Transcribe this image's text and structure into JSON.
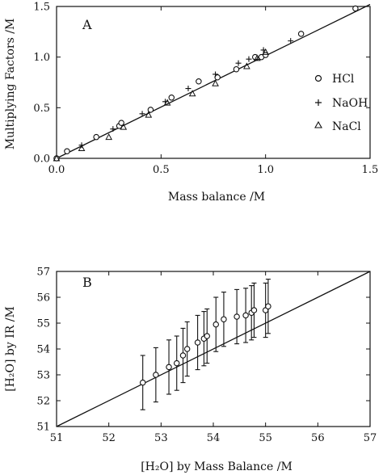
{
  "chart_data": [
    {
      "type": "scatter",
      "panel_label": "A",
      "xlabel": "Mass balance  /M",
      "ylabel": "Multiplying Factors  /M",
      "xlim": [
        0,
        1.5
      ],
      "ylim": [
        0,
        1.5
      ],
      "xticks": [
        0,
        0.5,
        1,
        1.5
      ],
      "xtick_labels": [
        "0.0",
        "0.5",
        "1.0",
        "1.5"
      ],
      "yticks": [
        0,
        0.5,
        1,
        1.5
      ],
      "ytick_labels": [
        "0.0",
        "0.5",
        "1.0",
        "1.5"
      ],
      "legend_position": "right",
      "fit_line": {
        "x": [
          0,
          1.5
        ],
        "y": [
          0,
          1.52
        ]
      },
      "series": [
        {
          "name": "HCl",
          "marker": "circle",
          "x": [
            0.0,
            0.05,
            0.19,
            0.3,
            0.31,
            0.45,
            0.55,
            0.68,
            0.77,
            0.86,
            0.95,
            0.98,
            1.0,
            1.17,
            1.43
          ],
          "y": [
            0.0,
            0.07,
            0.21,
            0.32,
            0.35,
            0.48,
            0.6,
            0.76,
            0.8,
            0.88,
            1.0,
            1.0,
            1.02,
            1.23,
            1.48
          ]
        },
        {
          "name": "NaOH",
          "marker": "plus",
          "x": [
            0.12,
            0.27,
            0.41,
            0.52,
            0.63,
            0.76,
            0.87,
            0.92,
            0.99,
            1.12
          ],
          "y": [
            0.13,
            0.29,
            0.44,
            0.56,
            0.69,
            0.83,
            0.94,
            0.98,
            1.07,
            1.16
          ]
        },
        {
          "name": "NaCl",
          "marker": "triangle",
          "x": [
            0.0,
            0.12,
            0.25,
            0.32,
            0.44,
            0.53,
            0.65,
            0.76,
            0.91,
            0.96,
            1.0
          ],
          "y": [
            0.0,
            0.1,
            0.21,
            0.31,
            0.43,
            0.55,
            0.64,
            0.74,
            0.91,
            0.99,
            1.05
          ]
        }
      ]
    },
    {
      "type": "scatter",
      "panel_label": "B",
      "xlabel": "[H₂O] by Mass Balance  /M",
      "ylabel": "[H₂O] by IR /M",
      "xlim": [
        51,
        57
      ],
      "ylim": [
        51,
        57
      ],
      "xticks": [
        51,
        52,
        53,
        54,
        55,
        56,
        57
      ],
      "xtick_labels": [
        "51",
        "52",
        "53",
        "54",
        "55",
        "56",
        "57"
      ],
      "yticks": [
        51,
        52,
        53,
        54,
        55,
        56,
        57
      ],
      "ytick_labels": [
        "51",
        "52",
        "53",
        "54",
        "55",
        "56",
        "57"
      ],
      "fit_line": {
        "x": [
          51,
          57
        ],
        "y": [
          51,
          57
        ]
      },
      "series": [
        {
          "name": "",
          "marker": "circle",
          "x": [
            52.65,
            52.9,
            53.15,
            53.3,
            53.42,
            53.5,
            53.7,
            53.82,
            53.88,
            54.05,
            54.2,
            54.45,
            54.62,
            54.73,
            54.78,
            55.0,
            55.05
          ],
          "y": [
            52.7,
            53.0,
            53.3,
            53.45,
            53.75,
            54.0,
            54.25,
            54.4,
            54.5,
            54.95,
            55.15,
            55.25,
            55.3,
            55.4,
            55.5,
            55.5,
            55.65
          ],
          "y_err": [
            1.05,
            1.05,
            1.05,
            1.05,
            1.05,
            1.05,
            1.05,
            1.05,
            1.05,
            1.05,
            1.05,
            1.05,
            1.05,
            1.05,
            1.05,
            1.05,
            1.05
          ]
        }
      ]
    }
  ]
}
